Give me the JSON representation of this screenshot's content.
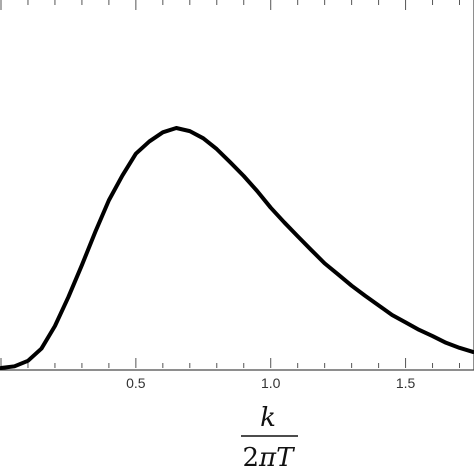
{
  "chart_data": {
    "type": "line",
    "title": "",
    "xlabel": {
      "numerator": "k",
      "denominator_coefficient": "2",
      "denominator_pi": "π",
      "denominator_variable": "T"
    },
    "ylabel": "",
    "xlim": [
      0.0,
      1.75
    ],
    "ylim": [
      0.0,
      1.0
    ],
    "x_tick_labels": [
      "0.5",
      "1.0",
      "1.5"
    ],
    "x_ticks": [
      0.5,
      1.0,
      1.5
    ],
    "grid": false,
    "legend": "none",
    "series": [
      {
        "color": "#000000",
        "x": [
          0.0,
          0.05,
          0.1,
          0.15,
          0.2,
          0.25,
          0.3,
          0.35,
          0.4,
          0.45,
          0.5,
          0.55,
          0.6,
          0.65,
          0.7,
          0.75,
          0.8,
          0.85,
          0.9,
          0.95,
          1.0,
          1.05,
          1.1,
          1.15,
          1.2,
          1.25,
          1.3,
          1.35,
          1.4,
          1.45,
          1.5,
          1.55,
          1.6,
          1.65,
          1.7,
          1.75
        ],
        "y": [
          0.0,
          0.007,
          0.03,
          0.081,
          0.175,
          0.296,
          0.429,
          0.568,
          0.699,
          0.802,
          0.893,
          0.944,
          0.982,
          1.0,
          0.987,
          0.957,
          0.912,
          0.857,
          0.8,
          0.737,
          0.668,
          0.607,
          0.549,
          0.492,
          0.436,
          0.39,
          0.343,
          0.301,
          0.261,
          0.221,
          0.19,
          0.159,
          0.133,
          0.105,
          0.084,
          0.067
        ]
      }
    ]
  }
}
